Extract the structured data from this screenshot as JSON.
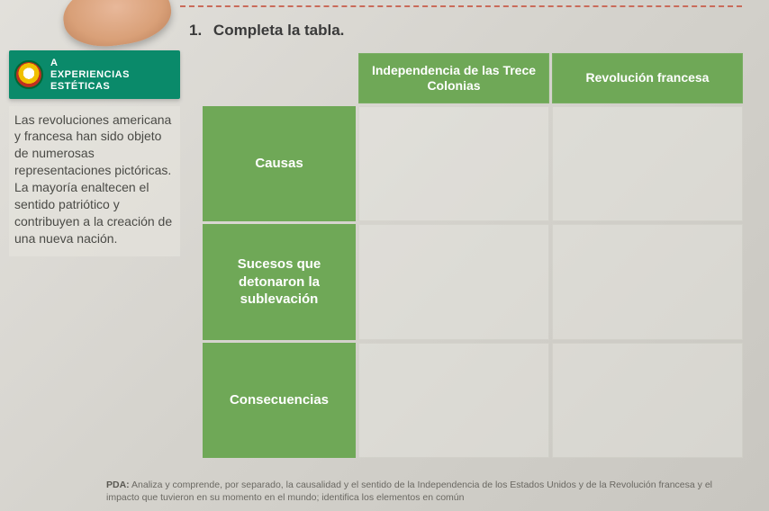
{
  "instruction": {
    "number": "1.",
    "text": "Completa la tabla."
  },
  "badge": {
    "line1": "A",
    "line2": "EXPERIENCIAS",
    "line3": "ESTÉTICAS"
  },
  "sidebar_text": "Las revoluciones americana y francesa han sido objeto de numerosas representaciones pictóricas. La mayoría enaltecen el sentido patriótico y contribuyen a la creación de una nueva nación.",
  "table": {
    "col_headers": [
      "Independencia de las Trece Colonias",
      "Revolución francesa"
    ],
    "row_headers": [
      "Causas",
      "Sucesos que detonaron la sublevación",
      "Consecuencias"
    ],
    "colors": {
      "header_bg": "#6fa857",
      "header_text": "#ffffff",
      "badge_bg": "#0a8a6a"
    },
    "cells": [
      [
        "",
        ""
      ],
      [
        "",
        ""
      ],
      [
        "",
        ""
      ]
    ]
  },
  "footer": {
    "label": "PDA:",
    "text": "Analiza y comprende, por separado, la causalidad y el sentido de la Independencia de los Estados Unidos y de la Revolución francesa y el impacto que tuvieron en su momento en el mundo; identifica los elementos en común"
  }
}
